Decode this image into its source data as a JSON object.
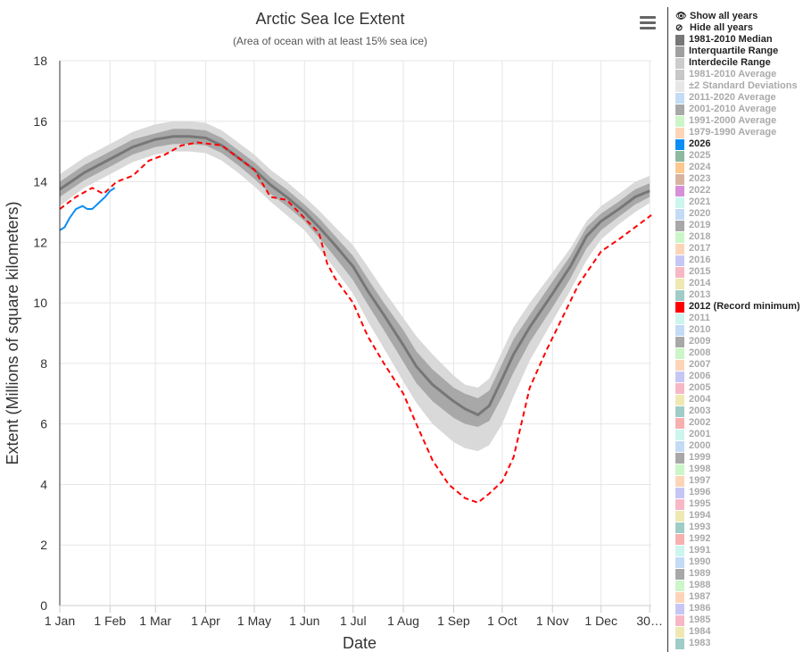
{
  "header": {
    "title": "Arctic Sea Ice Extent",
    "subtitle": "(Area of ocean with at least 15% sea ice)",
    "menu_icon": "hamburger-icon"
  },
  "legend": {
    "show_all": "Show all years",
    "hide_all": "Hide all years",
    "items": [
      {
        "label": "1981-2010 Median",
        "color": "#777777",
        "active": true
      },
      {
        "label": "Interquartile Range",
        "color": "#a0a0a0",
        "active": true
      },
      {
        "label": "Interdecile Range",
        "color": "#cccccc",
        "active": true
      },
      {
        "label": "1981-2010 Average",
        "color": "#c8c8c8",
        "active": false
      },
      {
        "label": "±2 Standard Deviations",
        "color": "#e6e6e6",
        "active": false
      },
      {
        "label": "2011-2020 Average",
        "color": "#c3dbf5",
        "active": false
      },
      {
        "label": "2001-2010 Average",
        "color": "#a8a8a8",
        "active": false
      },
      {
        "label": "1991-2000 Average",
        "color": "#ccf5c8",
        "active": false
      },
      {
        "label": "1979-1990 Average",
        "color": "#fcd5b8",
        "active": false
      },
      {
        "label": "2026",
        "color": "#0a8ef5",
        "active": true
      },
      {
        "label": "2025",
        "color": "#8fb8a0",
        "active": false
      },
      {
        "label": "2024",
        "color": "#fcc890",
        "active": false
      },
      {
        "label": "2023",
        "color": "#d9b3a0",
        "active": false
      },
      {
        "label": "2022",
        "color": "#d690d9",
        "active": false
      },
      {
        "label": "2021",
        "color": "#ccf5ef",
        "active": false
      },
      {
        "label": "2020",
        "color": "#c3dbf5",
        "active": false
      },
      {
        "label": "2019",
        "color": "#a8a8a8",
        "active": false
      },
      {
        "label": "2018",
        "color": "#ccf5c8",
        "active": false
      },
      {
        "label": "2017",
        "color": "#fcd5b8",
        "active": false
      },
      {
        "label": "2016",
        "color": "#c6c6f5",
        "active": false
      },
      {
        "label": "2015",
        "color": "#f7b8c6",
        "active": false
      },
      {
        "label": "2014",
        "color": "#efe8b3",
        "active": false
      },
      {
        "label": "2013",
        "color": "#a0ccc8",
        "active": false
      },
      {
        "label": "2012 (Record minimum)",
        "color": "#ff0000",
        "active": true
      },
      {
        "label": "2011",
        "color": "#ccf5ef",
        "active": false
      },
      {
        "label": "2010",
        "color": "#c3dbf5",
        "active": false
      },
      {
        "label": "2009",
        "color": "#a8a8a8",
        "active": false
      },
      {
        "label": "2008",
        "color": "#ccf5c8",
        "active": false
      },
      {
        "label": "2007",
        "color": "#fcd5b8",
        "active": false
      },
      {
        "label": "2006",
        "color": "#c6c6f5",
        "active": false
      },
      {
        "label": "2005",
        "color": "#f7b8c6",
        "active": false
      },
      {
        "label": "2004",
        "color": "#efe8b3",
        "active": false
      },
      {
        "label": "2003",
        "color": "#a0ccc8",
        "active": false
      },
      {
        "label": "2002",
        "color": "#f7b0b0",
        "active": false
      },
      {
        "label": "2001",
        "color": "#ccf5ef",
        "active": false
      },
      {
        "label": "2000",
        "color": "#c3dbf5",
        "active": false
      },
      {
        "label": "1999",
        "color": "#a8a8a8",
        "active": false
      },
      {
        "label": "1998",
        "color": "#ccf5c8",
        "active": false
      },
      {
        "label": "1997",
        "color": "#fcd5b8",
        "active": false
      },
      {
        "label": "1996",
        "color": "#c6c6f5",
        "active": false
      },
      {
        "label": "1995",
        "color": "#f7b8c6",
        "active": false
      },
      {
        "label": "1994",
        "color": "#efe8b3",
        "active": false
      },
      {
        "label": "1993",
        "color": "#a0ccc8",
        "active": false
      },
      {
        "label": "1992",
        "color": "#f7b0b0",
        "active": false
      },
      {
        "label": "1991",
        "color": "#ccf5ef",
        "active": false
      },
      {
        "label": "1990",
        "color": "#c3dbf5",
        "active": false
      },
      {
        "label": "1989",
        "color": "#a8a8a8",
        "active": false
      },
      {
        "label": "1988",
        "color": "#ccf5c8",
        "active": false
      },
      {
        "label": "1987",
        "color": "#fcd5b8",
        "active": false
      },
      {
        "label": "1986",
        "color": "#c6c6f5",
        "active": false
      },
      {
        "label": "1985",
        "color": "#f7b8c6",
        "active": false
      },
      {
        "label": "1984",
        "color": "#efe8b3",
        "active": false
      },
      {
        "label": "1983",
        "color": "#a0ccc8",
        "active": false
      }
    ]
  },
  "chart_data": {
    "type": "line",
    "title": "Arctic Sea Ice Extent",
    "subtitle": "(Area of ocean with at least 15% sea ice)",
    "xlabel": "Date",
    "ylabel": "Extent (Millions of square kilometers)",
    "xlim": [
      0,
      365
    ],
    "ylim": [
      0,
      18
    ],
    "grid": true,
    "yticks": [
      0,
      2,
      4,
      6,
      8,
      10,
      12,
      14,
      16,
      18
    ],
    "xticks": [
      {
        "day": 0,
        "label": "1 Jan"
      },
      {
        "day": 31,
        "label": "1 Feb"
      },
      {
        "day": 59,
        "label": "1 Mar"
      },
      {
        "day": 90,
        "label": "1 Apr"
      },
      {
        "day": 120,
        "label": "1 May"
      },
      {
        "day": 151,
        "label": "1 Jun"
      },
      {
        "day": 181,
        "label": "1 Jul"
      },
      {
        "day": 212,
        "label": "1 Aug"
      },
      {
        "day": 243,
        "label": "1 Sep"
      },
      {
        "day": 273,
        "label": "1 Oct"
      },
      {
        "day": 304,
        "label": "1 Nov"
      },
      {
        "day": 334,
        "label": "1 Dec"
      },
      {
        "day": 364,
        "label": "30…"
      }
    ],
    "days": [
      0,
      15,
      31,
      45,
      59,
      70,
      80,
      90,
      100,
      110,
      120,
      130,
      140,
      151,
      160,
      170,
      181,
      190,
      200,
      212,
      220,
      230,
      243,
      250,
      258,
      265,
      273,
      280,
      290,
      304,
      315,
      325,
      334,
      345,
      355,
      364
    ],
    "median": [
      13.75,
      14.3,
      14.75,
      15.15,
      15.4,
      15.5,
      15.5,
      15.45,
      15.2,
      14.8,
      14.4,
      13.9,
      13.5,
      13.0,
      12.5,
      11.9,
      11.2,
      10.4,
      9.6,
      8.6,
      7.9,
      7.3,
      6.75,
      6.5,
      6.3,
      6.6,
      7.5,
      8.3,
      9.2,
      10.3,
      11.2,
      12.2,
      12.7,
      13.1,
      13.5,
      13.7
    ],
    "iqr_low": [
      13.5,
      14.05,
      14.5,
      14.9,
      15.15,
      15.25,
      15.25,
      15.2,
      14.95,
      14.55,
      14.1,
      13.6,
      13.2,
      12.7,
      12.15,
      11.5,
      10.75,
      9.95,
      9.1,
      8.05,
      7.35,
      6.75,
      6.2,
      6.0,
      5.9,
      6.1,
      6.9,
      7.7,
      8.7,
      9.85,
      10.8,
      11.8,
      12.4,
      12.85,
      13.25,
      13.5
    ],
    "iqr_high": [
      14.0,
      14.55,
      15.0,
      15.4,
      15.6,
      15.75,
      15.75,
      15.7,
      15.45,
      15.05,
      14.65,
      14.15,
      13.75,
      13.25,
      12.8,
      12.2,
      11.55,
      10.8,
      10.0,
      9.1,
      8.4,
      7.8,
      7.2,
      7.0,
      6.85,
      7.1,
      8.0,
      8.8,
      9.6,
      10.7,
      11.55,
      12.5,
      12.95,
      13.35,
      13.75,
      13.95
    ],
    "idr_low": [
      13.2,
      13.8,
      14.25,
      14.65,
      14.9,
      15.0,
      15.0,
      14.95,
      14.7,
      14.3,
      13.85,
      13.35,
      12.9,
      12.4,
      11.8,
      11.1,
      10.3,
      9.4,
      8.5,
      7.4,
      6.7,
      6.0,
      5.4,
      5.2,
      5.1,
      5.3,
      6.0,
      6.9,
      8.1,
      9.4,
      10.4,
      11.4,
      12.1,
      12.6,
      13.0,
      13.3
    ],
    "idr_high": [
      14.25,
      14.8,
      15.25,
      15.65,
      15.9,
      16.0,
      16.0,
      15.95,
      15.7,
      15.3,
      14.9,
      14.4,
      14.0,
      13.5,
      13.05,
      12.5,
      11.9,
      11.2,
      10.4,
      9.5,
      8.9,
      8.3,
      7.6,
      7.3,
      7.2,
      7.5,
      8.4,
      9.2,
      10.0,
      11.0,
      11.8,
      12.7,
      13.2,
      13.6,
      14.0,
      14.2
    ],
    "series": [
      {
        "name": "2012 (Record minimum)",
        "color": "#ff0000",
        "dash": true,
        "x": [
          0,
          10,
          20,
          27,
          35,
          45,
          55,
          65,
          75,
          85,
          100,
          110,
          120,
          130,
          140,
          151,
          160,
          165,
          170,
          181,
          190,
          200,
          212,
          220,
          230,
          240,
          250,
          258,
          265,
          273,
          280,
          290,
          300,
          310,
          320,
          334,
          345,
          355,
          365
        ],
        "y": [
          13.1,
          13.5,
          13.8,
          13.6,
          14.0,
          14.2,
          14.7,
          14.9,
          15.2,
          15.3,
          15.2,
          14.8,
          14.4,
          13.5,
          13.4,
          12.8,
          12.3,
          11.3,
          10.8,
          10.0,
          8.9,
          8.0,
          7.0,
          6.0,
          4.8,
          4.0,
          3.55,
          3.4,
          3.7,
          4.1,
          4.9,
          7.2,
          8.4,
          9.5,
          10.6,
          11.7,
          12.1,
          12.5,
          12.9
        ]
      },
      {
        "name": "2026",
        "color": "#0a8ef5",
        "dash": false,
        "x": [
          0,
          3,
          6,
          10,
          14,
          17,
          20,
          24,
          28,
          31,
          34
        ],
        "y": [
          12.4,
          12.5,
          12.8,
          13.1,
          13.2,
          13.1,
          13.1,
          13.3,
          13.5,
          13.7,
          13.8
        ]
      }
    ]
  }
}
